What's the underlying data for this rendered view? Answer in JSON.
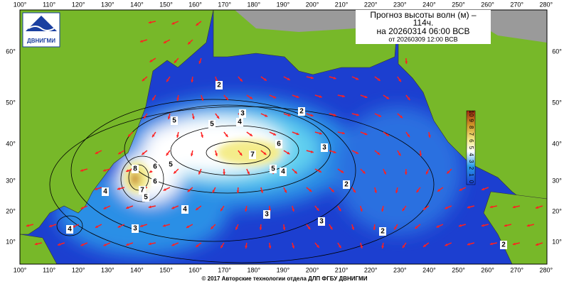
{
  "header": {
    "title": "Прогноз высоты волн (м) –",
    "title_cont": "114ч.",
    "valid": "на 20260314 06:00 ВСВ",
    "issued": "от 20260309 12:00 ВСВ"
  },
  "logo": "ДВНИГМИ",
  "longitude_labels": [
    "100°",
    "110°",
    "120°",
    "130°",
    "140°",
    "150°",
    "160°",
    "170°",
    "180°",
    "190°",
    "200°",
    "210°",
    "220°",
    "230°",
    "240°",
    "250°",
    "260°",
    "270°",
    "280°"
  ],
  "latitude_labels": [
    "60°",
    "50°",
    "40°",
    "30°",
    "20°",
    "10°"
  ],
  "colorbar": {
    "ticks": [
      10,
      9,
      8,
      7,
      6,
      5,
      4,
      3,
      2,
      1,
      0
    ]
  },
  "contour_labels": [
    "2",
    "3",
    "4",
    "5",
    "5",
    "6",
    "7",
    "5",
    "4",
    "5",
    "6",
    "8",
    "7",
    "6",
    "5",
    "4",
    "3",
    "2",
    "4",
    "3",
    "3",
    "2",
    "4",
    "3",
    "2",
    "2"
  ],
  "footer": "© 2017 Авторские технологии отдела ДЛП ФГБУ ДВНИГМИ"
}
